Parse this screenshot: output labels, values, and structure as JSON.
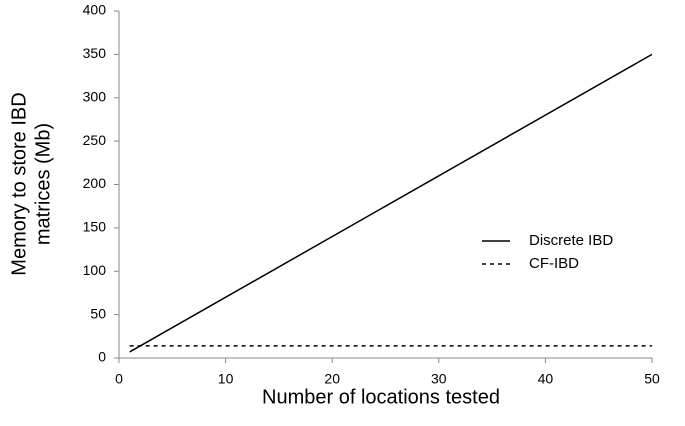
{
  "chart_data": {
    "type": "line",
    "xlabel": "Number of locations tested",
    "ylabel": [
      "Memory to store IBD",
      "matrices (Mb)"
    ],
    "x": [
      1,
      50
    ],
    "series": [
      {
        "name": "Discrete IBD",
        "color": "#000000",
        "dash": "solid",
        "values": [
          7,
          350
        ]
      },
      {
        "name": "CF-IBD",
        "color": "#000000",
        "dash": "dashed",
        "values": [
          14,
          14
        ]
      }
    ],
    "xlim": [
      0,
      50
    ],
    "xticks": [
      0,
      10,
      20,
      30,
      40,
      50
    ],
    "ylim": [
      0,
      400
    ],
    "yticks": [
      0,
      50,
      100,
      150,
      200,
      250,
      300,
      350,
      400
    ],
    "grid": false,
    "legend": "center right"
  }
}
